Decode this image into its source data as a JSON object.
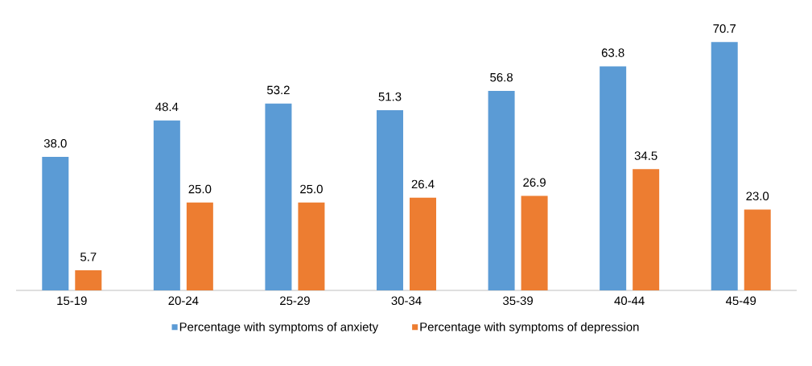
{
  "chart_data": {
    "type": "bar",
    "categories": [
      "15-19",
      "20-24",
      "25-29",
      "30-34",
      "35-39",
      "40-44",
      "45-49"
    ],
    "series": [
      {
        "name": "Percentage with symptoms of anxiety",
        "color": "#5b9bd5",
        "values": [
          38.0,
          48.4,
          53.2,
          51.3,
          56.8,
          63.8,
          70.7
        ],
        "value_labels": [
          "38.0",
          "48.4",
          "53.2",
          "51.3",
          "56.8",
          "63.8",
          "70.7"
        ]
      },
      {
        "name": "Percentage with symptoms of depression",
        "color": "#ed7d31",
        "values": [
          5.7,
          25.0,
          25.0,
          26.4,
          26.9,
          34.5,
          23.0
        ],
        "value_labels": [
          "5.7",
          "25.0",
          "25.0",
          "26.4",
          "26.9",
          "34.5",
          "23.0"
        ]
      }
    ],
    "legend": "bottom",
    "grid": false
  }
}
